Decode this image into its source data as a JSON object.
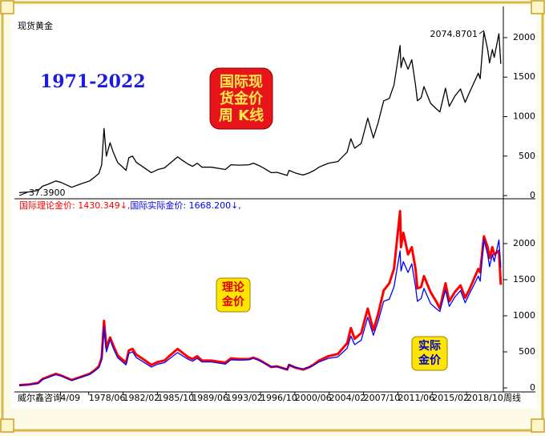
{
  "frame_label": "威尔鑫咨询",
  "period_label": "周线",
  "chart_data": [
    {
      "type": "line",
      "title": "1971-2022",
      "badge": [
        "国际现",
        "货金价",
        "周  K线"
      ],
      "x": [
        1971.0,
        1972.0,
        1973.0,
        1973.5,
        1974.0,
        1974.9,
        1975.5,
        1976.6,
        1977.5,
        1978.5,
        1979.0,
        1979.5,
        1979.8,
        1980.05,
        1980.3,
        1980.7,
        1981.0,
        1981.5,
        1982.4,
        1982.7,
        1983.1,
        1983.5,
        1984.0,
        1985.1,
        1985.8,
        1986.5,
        1987.0,
        1987.9,
        1988.5,
        1989.0,
        1989.5,
        1990.0,
        1990.5,
        1991.5,
        1992.5,
        1993.0,
        1993.6,
        1994.5,
        1995.5,
        1996.0,
        1996.5,
        1997.0,
        1997.9,
        1998.5,
        1999.6,
        1999.8,
        2000.5,
        2001.3,
        2002.0,
        2002.5,
        2003.0,
        2004.0,
        2005.0,
        2006.0,
        2006.4,
        2006.8,
        2007.5,
        2008.2,
        2008.8,
        2009.3,
        2009.9,
        2010.5,
        2011.0,
        2011.65,
        2011.75,
        2012.0,
        2012.5,
        2012.9,
        2013.3,
        2013.5,
        2013.9,
        2014.2,
        2014.9,
        2015.5,
        2015.9,
        2016.5,
        2016.9,
        2017.5,
        2018.1,
        2018.6,
        2019.0,
        2019.5,
        2020.0,
        2020.2,
        2020.6,
        2021.0,
        2021.2,
        2021.5,
        2021.7,
        2022.2,
        2022.4
      ],
      "series": [
        {
          "name": "现货黄金",
          "color": "#000000",
          "values": [
            37.39,
            46,
            65,
            120,
            140,
            185,
            165,
            105,
            145,
            185,
            230,
            280,
            390,
            850,
            500,
            670,
            560,
            420,
            320,
            480,
            500,
            420,
            380,
            290,
            330,
            350,
            400,
            490,
            440,
            400,
            370,
            410,
            360,
            360,
            340,
            330,
            390,
            385,
            390,
            410,
            385,
            355,
            290,
            295,
            255,
            320,
            285,
            260,
            290,
            320,
            360,
            410,
            430,
            550,
            720,
            600,
            660,
            980,
            730,
            920,
            1200,
            1230,
            1400,
            1900,
            1620,
            1750,
            1600,
            1720,
            1400,
            1200,
            1240,
            1380,
            1170,
            1100,
            1060,
            1360,
            1130,
            1260,
            1350,
            1180,
            1290,
            1420,
            1550,
            1480,
            2074.87,
            1850,
            1680,
            1850,
            1750,
            2050,
            1668.2
          ]
        }
      ],
      "annotations": [
        "2074.8701",
        "37.3900"
      ],
      "xlim": [
        1971,
        2022.5
      ],
      "ylim": [
        -30,
        2375
      ],
      "yticks": [
        0,
        500,
        1000,
        1500,
        2000
      ]
    },
    {
      "type": "line",
      "badges": [
        [
          "理论",
          "金价"
        ],
        [
          "实际",
          "金价"
        ]
      ],
      "x": [
        1971.0,
        1972.0,
        1973.0,
        1973.5,
        1974.0,
        1974.9,
        1975.5,
        1976.6,
        1977.5,
        1978.5,
        1979.0,
        1979.5,
        1979.8,
        1980.05,
        1980.3,
        1980.7,
        1981.0,
        1981.5,
        1982.4,
        1982.7,
        1983.1,
        1983.5,
        1984.0,
        1985.1,
        1985.8,
        1986.5,
        1987.0,
        1987.9,
        1988.5,
        1989.0,
        1989.5,
        1990.0,
        1990.5,
        1991.5,
        1992.5,
        1993.0,
        1993.6,
        1994.5,
        1995.5,
        1996.0,
        1996.5,
        1997.0,
        1997.9,
        1998.5,
        1999.6,
        1999.8,
        2000.5,
        2001.3,
        2002.0,
        2002.5,
        2003.0,
        2004.0,
        2005.0,
        2006.0,
        2006.4,
        2006.8,
        2007.5,
        2008.2,
        2008.8,
        2009.3,
        2009.9,
        2010.5,
        2011.0,
        2011.65,
        2011.75,
        2012.0,
        2012.5,
        2012.9,
        2013.3,
        2013.5,
        2013.9,
        2014.2,
        2014.9,
        2015.5,
        2015.9,
        2016.5,
        2016.9,
        2017.5,
        2018.1,
        2018.6,
        2019.0,
        2019.5,
        2020.0,
        2020.2,
        2020.6,
        2021.0,
        2021.2,
        2021.5,
        2021.7,
        2022.2,
        2022.4
      ],
      "series": [
        {
          "name": "国际理论金价: 1430.349↓,",
          "color": "#ff0000",
          "values": [
            37.39,
            48,
            68,
            125,
            150,
            195,
            170,
            110,
            150,
            195,
            240,
            300,
            420,
            930,
            560,
            700,
            600,
            450,
            350,
            520,
            540,
            460,
            420,
            320,
            360,
            380,
            440,
            540,
            480,
            430,
            400,
            440,
            380,
            380,
            360,
            350,
            410,
            400,
            400,
            420,
            395,
            360,
            290,
            300,
            255,
            320,
            280,
            255,
            290,
            330,
            380,
            440,
            470,
            620,
            830,
            680,
            760,
            1100,
            800,
            1020,
            1350,
            1450,
            1650,
            2450,
            1950,
            2150,
            1850,
            1950,
            1650,
            1380,
            1400,
            1550,
            1330,
            1200,
            1100,
            1450,
            1200,
            1330,
            1420,
            1250,
            1350,
            1500,
            1650,
            1600,
            2100,
            1950,
            1800,
            1950,
            1850,
            1900,
            1430.349
          ]
        },
        {
          "name": "国际实际金价: 1668.200↓,",
          "color": "#0000ff",
          "values": [
            37.39,
            46,
            65,
            120,
            140,
            185,
            165,
            105,
            145,
            185,
            230,
            280,
            390,
            850,
            500,
            670,
            560,
            420,
            320,
            480,
            500,
            420,
            380,
            290,
            330,
            350,
            400,
            490,
            440,
            400,
            370,
            410,
            360,
            360,
            340,
            330,
            390,
            385,
            390,
            410,
            385,
            355,
            290,
            295,
            255,
            320,
            285,
            260,
            290,
            320,
            360,
            410,
            430,
            550,
            720,
            600,
            660,
            980,
            730,
            920,
            1200,
            1230,
            1400,
            1900,
            1620,
            1750,
            1600,
            1720,
            1400,
            1200,
            1240,
            1380,
            1170,
            1100,
            1060,
            1360,
            1130,
            1260,
            1350,
            1180,
            1290,
            1420,
            1550,
            1480,
            2060,
            1850,
            1680,
            1850,
            1750,
            2050,
            1668.2
          ]
        }
      ],
      "xlim": [
        1971,
        2022.5
      ],
      "ylim": [
        -44,
        2610
      ],
      "yticks": [
        0,
        500,
        1000,
        1500,
        2000
      ],
      "xticks": [
        {
          "value": 1975.4,
          "label": "4/09"
        },
        {
          "value": 1978.42,
          "label": "1978/06"
        },
        {
          "value": 1982.08,
          "label": "1982/02"
        },
        {
          "value": 1985.75,
          "label": "1985/10"
        },
        {
          "value": 1989.42,
          "label": "1989/06"
        },
        {
          "value": 1993.08,
          "label": "1993/02"
        },
        {
          "value": 1996.75,
          "label": "1996/10"
        },
        {
          "value": 2000.42,
          "label": "2000/06"
        },
        {
          "value": 2004.08,
          "label": "2004/02"
        },
        {
          "value": 2007.75,
          "label": "2007/10"
        },
        {
          "value": 2011.42,
          "label": "2011/06"
        },
        {
          "value": 2015.08,
          "label": "2015/02"
        },
        {
          "value": 2018.75,
          "label": "2018/10"
        }
      ]
    }
  ]
}
